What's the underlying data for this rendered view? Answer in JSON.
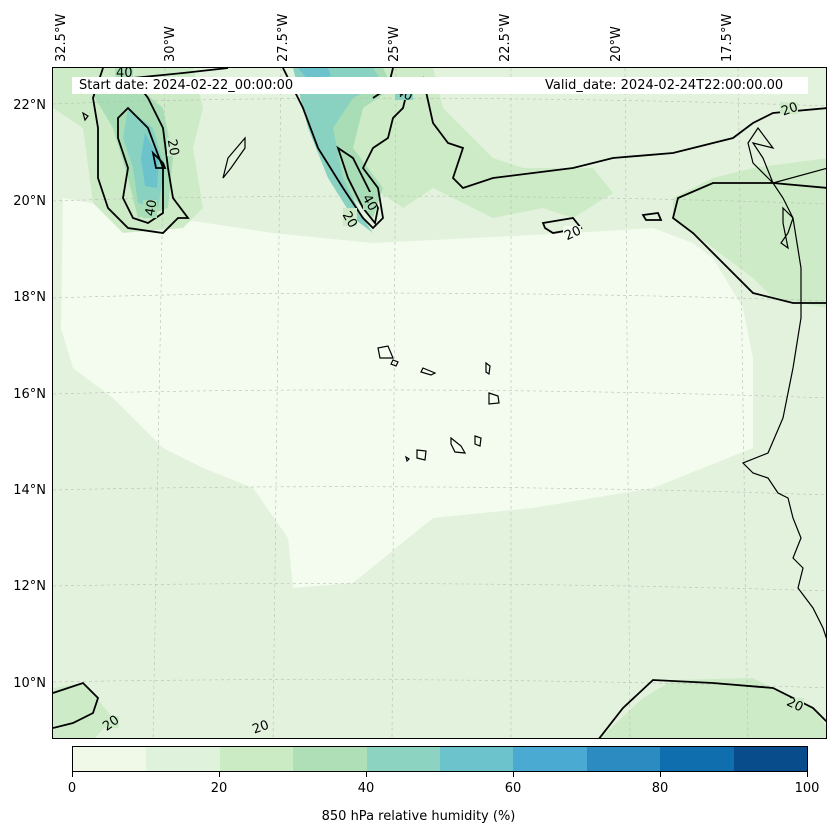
{
  "map": {
    "start_date": "Start date: 2024-02-22_00:00:00",
    "valid_date": "Valid_date: 2024-02-24T22:00:00.00",
    "longitude_labels": [
      "32.5°W",
      "30°W",
      "27.5°W",
      "25°W",
      "22.5°W",
      "20°W",
      "17.5°W"
    ],
    "latitude_labels": [
      "22°N",
      "20°N",
      "18°N",
      "16°N",
      "14°N",
      "12°N",
      "10°N"
    ],
    "contour_labels": [
      "40",
      "40",
      "20",
      "40",
      "20",
      "40",
      "20",
      "20",
      "20",
      "20",
      "20"
    ],
    "fill_colors": [
      "#f7fcf0",
      "#e0f3db",
      "#ccebc5",
      "#a8ddb5",
      "#7bccc4",
      "#4eb3d3",
      "#2b8cbe",
      "#0868ac",
      "#084081"
    ]
  },
  "colorbar": {
    "title": "850 hPa relative humidity (%)",
    "tick_labels": [
      "0",
      "20",
      "40",
      "60",
      "80",
      "100"
    ],
    "segment_colors": [
      "#f0f9e8",
      "#dff2db",
      "#cbebc5",
      "#afdfb6",
      "#8dd3c1",
      "#6cc3cb",
      "#4aaad2",
      "#2c8bc0",
      "#0f6fae",
      "#084c8c"
    ]
  }
}
